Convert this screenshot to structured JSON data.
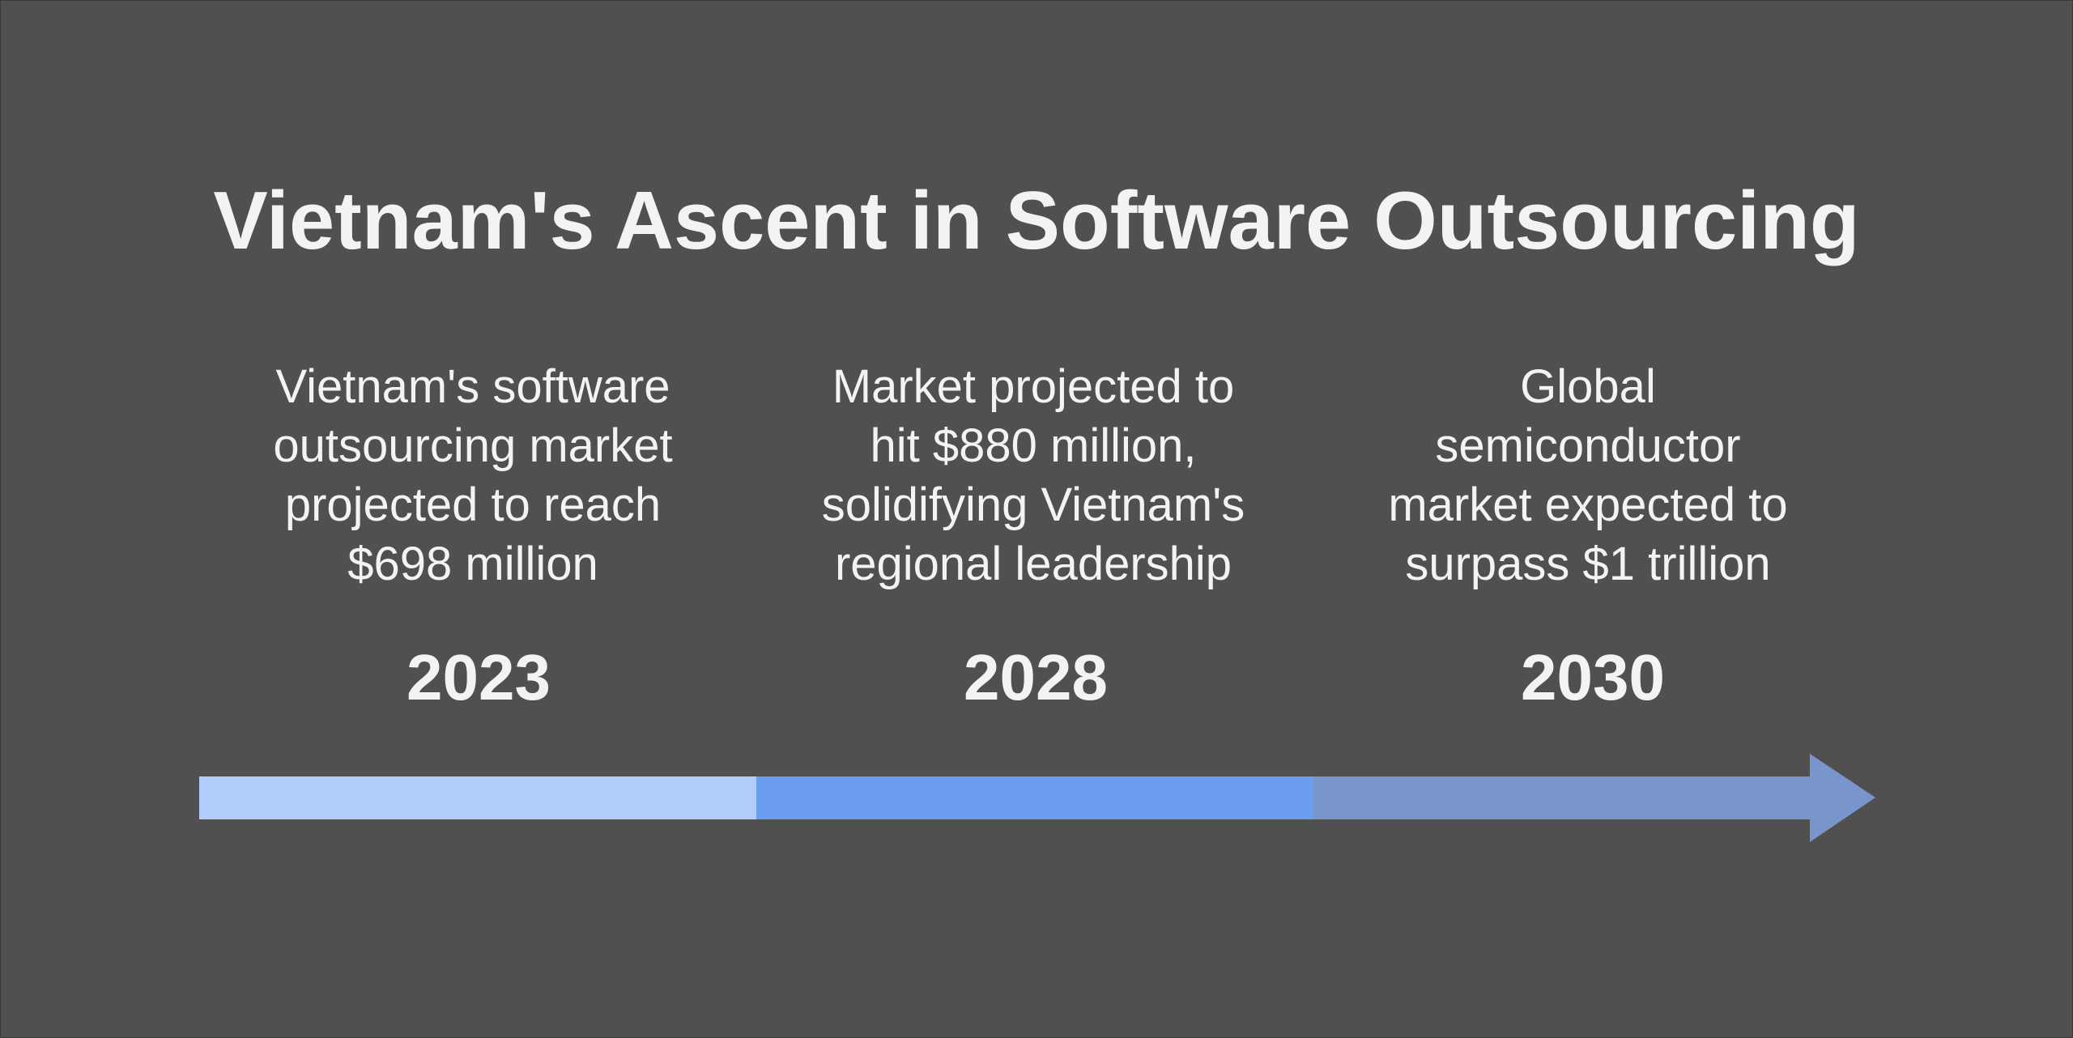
{
  "title": "Vietnam's Ascent in Software Outsourcing",
  "milestones": [
    {
      "year": "2023",
      "lines": [
        "Vietnam's software",
        "outsourcing market",
        "projected to reach",
        "$698 million"
      ],
      "color": "#b2cdfb"
    },
    {
      "year": "2028",
      "lines": [
        "Market projected to",
        "hit $880 million,",
        "solidifying Vietnam's",
        "regional leadership"
      ],
      "color": "#6c9ef0"
    },
    {
      "year": "2030",
      "lines": [
        "Global",
        "semiconductor",
        "market expected to",
        "surpass $1 trillion"
      ],
      "color": "#7896cc"
    }
  ],
  "colors": {
    "background": "#505050",
    "text": "#f3f3f3"
  }
}
